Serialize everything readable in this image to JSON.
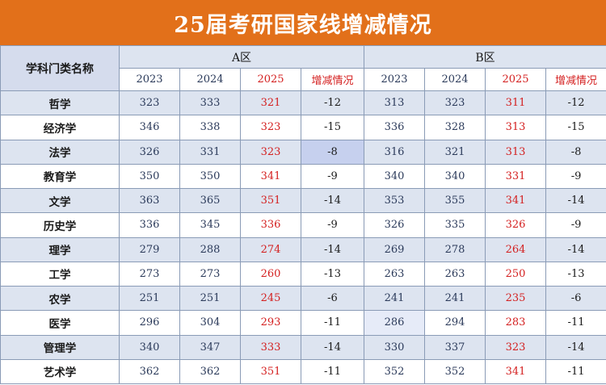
{
  "title": "25届考研国家线增减情况",
  "header": {
    "subject_label": "学科门类名称",
    "region_a": "A区",
    "region_b": "B区",
    "years": [
      "2023",
      "2024",
      "2025"
    ],
    "change_label": "增减情况"
  },
  "rows": [
    {
      "subject": "哲学",
      "a": [
        "323",
        "333",
        "321"
      ],
      "a_change": "-12",
      "b": [
        "313",
        "323",
        "311"
      ],
      "b_change": "-12"
    },
    {
      "subject": "经济学",
      "a": [
        "346",
        "338",
        "323"
      ],
      "a_change": "-15",
      "b": [
        "336",
        "328",
        "313"
      ],
      "b_change": "-15"
    },
    {
      "subject": "法学",
      "a": [
        "326",
        "331",
        "323"
      ],
      "a_change": "-8",
      "b": [
        "316",
        "321",
        "313"
      ],
      "b_change": "-8"
    },
    {
      "subject": "教育学",
      "a": [
        "350",
        "350",
        "341"
      ],
      "a_change": "-9",
      "b": [
        "340",
        "340",
        "331"
      ],
      "b_change": "-9"
    },
    {
      "subject": "文学",
      "a": [
        "363",
        "365",
        "351"
      ],
      "a_change": "-14",
      "b": [
        "353",
        "355",
        "341"
      ],
      "b_change": "-14"
    },
    {
      "subject": "历史学",
      "a": [
        "336",
        "345",
        "336"
      ],
      "a_change": "-9",
      "b": [
        "326",
        "335",
        "326"
      ],
      "b_change": "-9"
    },
    {
      "subject": "理学",
      "a": [
        "279",
        "288",
        "274"
      ],
      "a_change": "-14",
      "b": [
        "269",
        "278",
        "264"
      ],
      "b_change": "-14"
    },
    {
      "subject": "工学",
      "a": [
        "273",
        "273",
        "260"
      ],
      "a_change": "-13",
      "b": [
        "263",
        "263",
        "250"
      ],
      "b_change": "-13"
    },
    {
      "subject": "农学",
      "a": [
        "251",
        "251",
        "245"
      ],
      "a_change": "-6",
      "b": [
        "241",
        "241",
        "235"
      ],
      "b_change": "-6"
    },
    {
      "subject": "医学",
      "a": [
        "296",
        "304",
        "293"
      ],
      "a_change": "-11",
      "b": [
        "286",
        "294",
        "283"
      ],
      "b_change": "-11"
    },
    {
      "subject": "管理学",
      "a": [
        "340",
        "347",
        "333"
      ],
      "a_change": "-14",
      "b": [
        "330",
        "337",
        "323"
      ],
      "b_change": "-14"
    },
    {
      "subject": "艺术学",
      "a": [
        "362",
        "362",
        "351"
      ],
      "a_change": "-11",
      "b": [
        "352",
        "352",
        "341"
      ],
      "b_change": "-11"
    }
  ],
  "colors": {
    "banner": "#e2701a",
    "header_fill": "#dde4f0",
    "accent_red": "#d41f1f",
    "text_navy": "#2b3a5a"
  }
}
